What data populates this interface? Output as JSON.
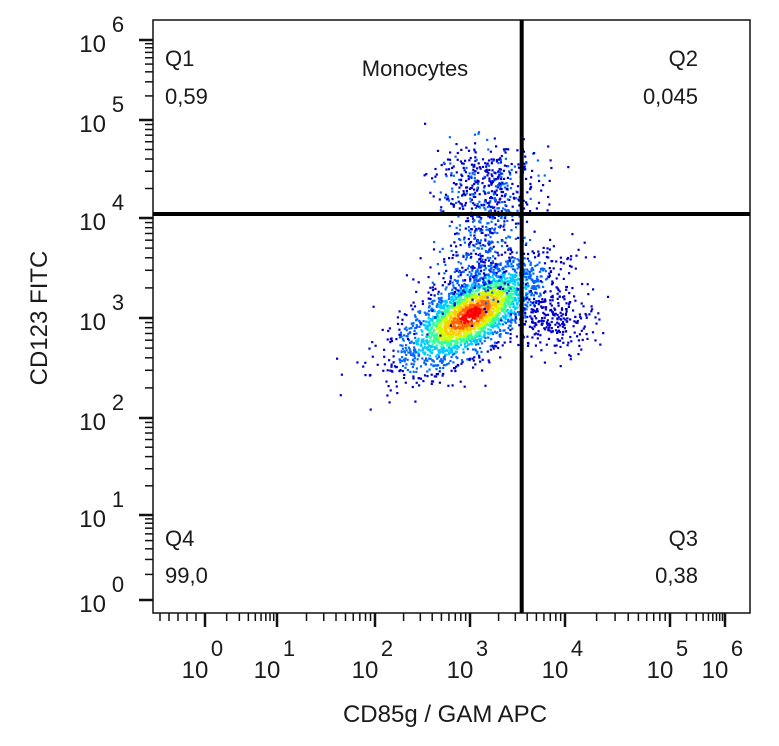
{
  "chart_data": {
    "type": "scatter",
    "title": "Monocytes",
    "xlabel": "CD85g / GAM APC",
    "ylabel": "CD123 FITC",
    "x_scale": "log",
    "y_scale": "log",
    "x_ticks": [
      {
        "base": "10",
        "exp": "0",
        "value": 1
      },
      {
        "base": "10",
        "exp": "1",
        "value": 10
      },
      {
        "base": "10",
        "exp": "2",
        "value": 100
      },
      {
        "base": "10",
        "exp": "3",
        "value": 1000
      },
      {
        "base": "10",
        "exp": "4",
        "value": 10000
      },
      {
        "base": "10",
        "exp": "5",
        "value": 100000
      },
      {
        "base": "10",
        "exp": "6",
        "value": 1000000
      }
    ],
    "y_ticks": [
      {
        "base": "10",
        "exp": "0",
        "value": 1
      },
      {
        "base": "10",
        "exp": "1",
        "value": 10
      },
      {
        "base": "10",
        "exp": "2",
        "value": 100
      },
      {
        "base": "10",
        "exp": "3",
        "value": 1000
      },
      {
        "base": "10",
        "exp": "4",
        "value": 10000
      },
      {
        "base": "10",
        "exp": "5",
        "value": 100000
      },
      {
        "base": "10",
        "exp": "6",
        "value": 1000000
      }
    ],
    "gates": {
      "x": 3500,
      "y": 11000
    },
    "quadrants": [
      {
        "name": "Q1",
        "value": "0,59",
        "position": "top-left"
      },
      {
        "name": "Q2",
        "value": "0,045",
        "position": "top-right"
      },
      {
        "name": "Q3",
        "value": "0,38",
        "position": "bottom-right"
      },
      {
        "name": "Q4",
        "value": "99,0",
        "position": "bottom-left"
      }
    ],
    "populations": [
      {
        "label": "main-cluster",
        "center_x": 1000,
        "center_y": 1100,
        "density": "high"
      },
      {
        "label": "upper-cluster",
        "center_x": 1500,
        "center_y": 25000,
        "density": "low"
      },
      {
        "label": "right-cluster",
        "center_x": 8000,
        "center_y": 1000,
        "density": "low"
      }
    ],
    "colors": [
      "#0000cc",
      "#0066ff",
      "#00ccff",
      "#33ff99",
      "#ccff00",
      "#ffcc00",
      "#ff6600",
      "#ff0000"
    ]
  }
}
